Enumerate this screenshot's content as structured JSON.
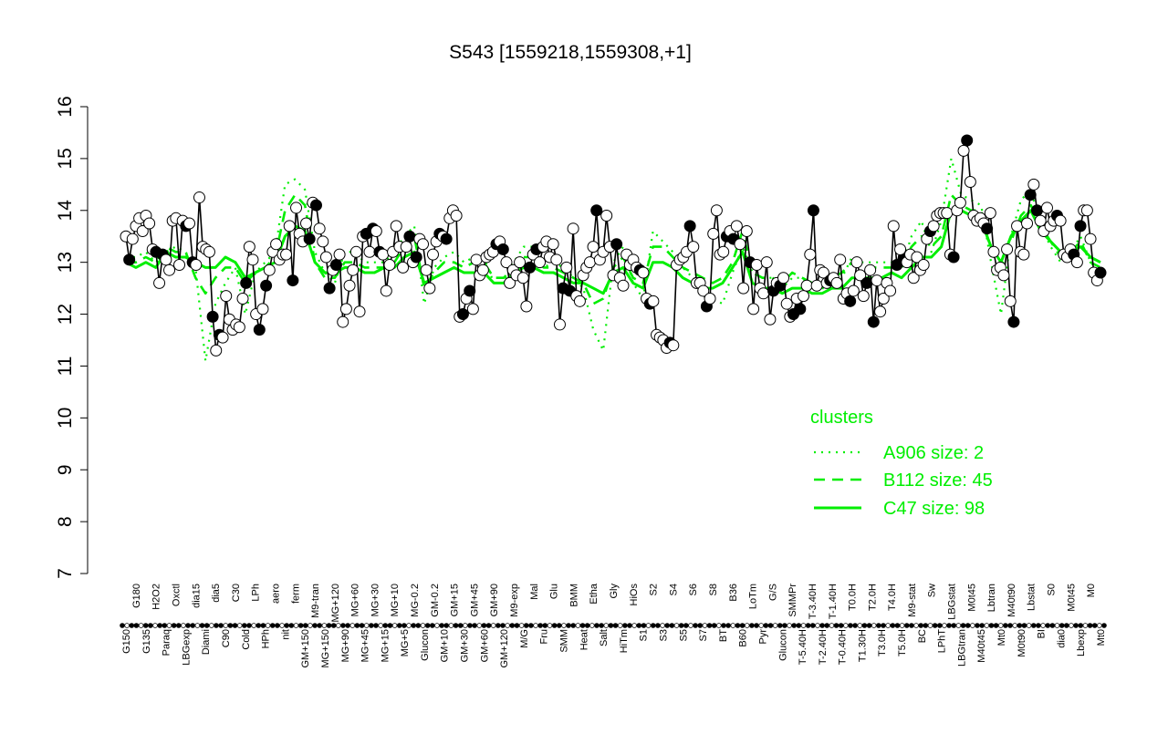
{
  "chart_data": {
    "type": "line",
    "title": "S543 [1559218,1559308,+1]",
    "xlabel": "",
    "ylabel": "",
    "ylim": [
      7,
      16
    ],
    "yticks": [
      7,
      8,
      9,
      10,
      11,
      12,
      13,
      14,
      15,
      16
    ],
    "grid": false,
    "legend_position": "right",
    "colors": {
      "cluster_line": "#00ee00",
      "legend_text": "#00ee00",
      "axis": "#000000",
      "point_fill": "#ffffff",
      "point_stroke": "#000000",
      "group_marker": "#000000"
    },
    "x_tick_labels": [
      "G150",
      "G180",
      "G135",
      "H2O2",
      "Paraq",
      "Oxctl",
      "LBGexp",
      "dia15",
      "Diami",
      "dia5",
      "C90",
      "C30",
      "Cold",
      "LPh",
      "HPh",
      "aero",
      "nit",
      "ferm",
      "GM+150",
      "M9-tran",
      "MG+150",
      "MG+120",
      "MG+90",
      "MG+60",
      "MG+45",
      "MG+30",
      "MG+15",
      "MG+10",
      "MG+5",
      "MG-0.2",
      "Glucon",
      "GM-0.2",
      "GM+10",
      "GM+15",
      "GM+30",
      "GM+45",
      "GM+60",
      "GM+90",
      "GM+120",
      "M9-exp",
      "M/G",
      "Mal",
      "Fru",
      "Glu",
      "SMM",
      "BMM",
      "Heat",
      "Etha",
      "Salt",
      "Gly",
      "HiTm",
      "HiOs",
      "S1",
      "S2",
      "S3",
      "S4",
      "S5",
      "S6",
      "S7",
      "S8",
      "BT",
      "B36",
      "B60",
      "LoTm",
      "Pyr",
      "G/S",
      "Glucon",
      "SMMPr",
      "T-5.40H",
      "T-3.40H",
      "T-2.40H",
      "T-1.40H",
      "T-0.40H",
      "T0.0H",
      "T1.30H",
      "T2.0H",
      "T3.0H",
      "T4.0H",
      "T5.0H",
      "M9-stat",
      "BC",
      "Sw",
      "LPhT",
      "LBGstat",
      "LBGtran",
      "M0t45",
      "M40t45",
      "Lbtran",
      "Mt0",
      "M40t90",
      "M0t90",
      "Lbstat",
      "BI",
      "S0",
      "dia0",
      "M0t45",
      "Lbexp",
      "M0",
      "Mt0"
    ],
    "legend": {
      "title": "clusters",
      "entries": [
        {
          "label": "A906 size: 2",
          "style": "dotted"
        },
        {
          "label": "B112 size: 45",
          "style": "dashed"
        },
        {
          "label": "C47 size: 98",
          "style": "solid"
        }
      ]
    },
    "groups": [
      {
        "label": "G150",
        "values": [
          13.5,
          13.05,
          13.45
        ]
      },
      {
        "label": "G135",
        "values": [
          13.7,
          13.85,
          13.6,
          13.9,
          13.75
        ]
      },
      {
        "label": "H2O2",
        "values": [
          13.25,
          13.2,
          12.6,
          13.15
        ]
      },
      {
        "label": "Paraq",
        "values": [
          13.05,
          12.85,
          13.8,
          13.85,
          12.95
        ]
      },
      {
        "label": "Oxctl",
        "values": [
          13.8,
          13.7,
          13.75,
          13.0
        ]
      },
      {
        "label": "LBGexp",
        "values": [
          12.95,
          14.25,
          13.3,
          13.25
        ]
      },
      {
        "label": "dia15",
        "values": [
          13.2,
          11.95,
          11.3,
          11.6
        ]
      },
      {
        "label": "Diami",
        "values": [
          11.55,
          12.35,
          11.9,
          11.7,
          11.8,
          11.75
        ]
      },
      {
        "label": "C90",
        "values": [
          12.3,
          12.6
        ]
      },
      {
        "label": "C30",
        "values": [
          13.3,
          13.05
        ]
      },
      {
        "label": "Cold",
        "values": [
          12.0,
          11.7,
          12.1,
          12.55
        ]
      },
      {
        "label": "HPh",
        "values": [
          12.85,
          13.2,
          13.35,
          13.05,
          13.15,
          13.15
        ]
      },
      {
        "label": "aero",
        "values": [
          13.7,
          12.65
        ]
      },
      {
        "label": "nit",
        "values": [
          14.05,
          13.55,
          13.4
        ]
      },
      {
        "label": "ferm",
        "values": [
          13.75,
          13.45,
          14.15,
          14.1
        ]
      },
      {
        "label": "GM+150",
        "values": [
          13.65,
          13.4
        ]
      },
      {
        "label": "MG+150",
        "values": [
          13.1,
          12.5,
          12.85,
          12.95,
          13.15
        ]
      },
      {
        "label": "MG+120",
        "values": [
          11.85,
          12.1,
          12.55,
          12.85,
          13.2,
          12.05
        ]
      },
      {
        "label": "MG+90",
        "values": [
          13.5,
          13.55,
          13.2,
          13.65,
          13.6,
          13.2,
          13.15
        ]
      },
      {
        "label": "MG+60",
        "values": [
          12.45,
          12.95,
          13.2,
          13.7,
          13.3,
          12.9
        ]
      },
      {
        "label": "MG+45",
        "values": [
          13.3,
          13.5,
          13.0,
          13.1,
          13.45
        ]
      },
      {
        "label": "MG+30",
        "values": [
          13.35,
          12.85,
          12.5,
          13.15
        ]
      },
      {
        "label": "MG+15",
        "values": [
          13.4,
          13.55,
          13.5,
          13.45
        ]
      },
      {
        "label": "MG-0.2",
        "values": [
          13.85,
          14.0,
          13.9
        ]
      },
      {
        "label": "Glucon",
        "values": [
          11.95,
          12.0,
          12.3,
          12.45,
          12.1
        ]
      },
      {
        "label": "GM-0.2",
        "values": [
          13.05,
          12.75,
          12.85,
          13.1,
          13.15
        ]
      },
      {
        "label": "GM+10",
        "values": [
          13.2,
          13.35,
          13.4,
          13.25,
          13.0
        ]
      },
      {
        "label": "GM+30",
        "values": [
          12.6,
          12.85,
          12.75,
          13.0,
          12.7
        ]
      },
      {
        "label": "GM+45",
        "values": [
          12.15,
          12.9,
          13.15,
          13.25,
          13.0
        ]
      },
      {
        "label": "GM+60",
        "values": [
          13.3,
          13.4,
          13.1,
          13.35,
          13.05
        ]
      },
      {
        "label": "GM+120",
        "values": [
          11.8,
          12.5,
          12.9,
          12.45,
          13.65
        ]
      },
      {
        "label": "M9-exp",
        "values": [
          12.35,
          12.25,
          12.75,
          12.9,
          13.0
        ]
      },
      {
        "label": "M/G",
        "values": [
          13.3,
          14.0,
          13.05
        ]
      },
      {
        "label": "Mal",
        "values": [
          13.2,
          13.9,
          13.3
        ]
      },
      {
        "label": "Fru",
        "values": [
          12.75,
          13.35,
          12.7
        ]
      },
      {
        "label": "Glu",
        "values": [
          12.55,
          13.15,
          12.95,
          13.05
        ]
      },
      {
        "label": "SMM",
        "values": [
          12.9,
          12.85
        ]
      },
      {
        "label": "BMM",
        "values": [
          12.8
        ]
      },
      {
        "label": "Heat",
        "values": [
          12.3,
          12.2,
          12.25
        ]
      },
      {
        "label": "Etha",
        "values": [
          11.6,
          11.55,
          11.5
        ]
      },
      {
        "label": "Salt",
        "values": [
          11.35,
          11.45,
          11.4
        ]
      },
      {
        "label": "Gly",
        "values": [
          12.95,
          13.05,
          13.1
        ]
      },
      {
        "label": "HiTm",
        "values": [
          13.2,
          13.7,
          13.3
        ]
      },
      {
        "label": "HiOs",
        "values": [
          12.6,
          12.6
        ]
      },
      {
        "label": "S1",
        "values": [
          12.45,
          12.15,
          12.3
        ]
      },
      {
        "label": "S2",
        "values": [
          13.55,
          14.0,
          13.15
        ]
      },
      {
        "label": "S3",
        "values": [
          13.2,
          13.5,
          13.6,
          13.45
        ]
      },
      {
        "label": "S4",
        "values": [
          13.7,
          13.35,
          12.5
        ]
      },
      {
        "label": "S5",
        "values": [
          13.6,
          13.0,
          12.1
        ]
      },
      {
        "label": "S6",
        "values": [
          12.95,
          12.5,
          12.4,
          13.0
        ]
      },
      {
        "label": "S7",
        "values": [
          11.9,
          12.45,
          12.6,
          12.55
        ]
      },
      {
        "label": "S8",
        "values": [
          12.7,
          12.2
        ]
      },
      {
        "label": "BT",
        "values": [
          11.95,
          12.0,
          12.3,
          12.1
        ]
      },
      {
        "label": "B36",
        "values": [
          12.35,
          12.55
        ]
      },
      {
        "label": "B60",
        "values": [
          13.15,
          14.0
        ]
      },
      {
        "label": "LoTm",
        "values": [
          12.55,
          12.85,
          12.8
        ]
      },
      {
        "label": "Pyr",
        "values": [
          12.6,
          12.65,
          12.7
        ]
      },
      {
        "label": "G/S",
        "values": [
          12.6,
          13.05,
          12.3
        ]
      },
      {
        "label": "Glucon",
        "values": [
          12.4,
          12.25,
          12.45
        ]
      },
      {
        "label": "SMMPr",
        "values": [
          13.0,
          12.75
        ]
      },
      {
        "label": "T-5.40H",
        "values": [
          12.35,
          12.6,
          12.85,
          11.85,
          12.65
        ]
      },
      {
        "label": "T-1.40H",
        "values": [
          12.05,
          12.3,
          12.6,
          12.45
        ]
      },
      {
        "label": "T1.30H",
        "values": [
          13.7,
          12.95,
          13.25,
          13.05,
          13.0
        ]
      },
      {
        "label": "T3.0H",
        "values": [
          13.15,
          12.7,
          13.1,
          12.85,
          12.95
        ]
      },
      {
        "label": "M9-stat",
        "values": [
          13.45,
          13.6,
          13.7
        ]
      },
      {
        "label": "BC",
        "values": [
          13.9,
          13.95,
          13.95,
          13.95
        ]
      },
      {
        "label": "Sw",
        "values": [
          13.15,
          13.1
        ]
      },
      {
        "label": "LPhT",
        "values": [
          14.0,
          14.15
        ]
      },
      {
        "label": "LBGstat",
        "values": [
          15.15,
          15.35,
          14.55
        ]
      },
      {
        "label": "LBGtran",
        "values": [
          13.9,
          13.8,
          13.85
        ]
      },
      {
        "label": "M0t45",
        "values": [
          13.75,
          13.65,
          13.95
        ]
      },
      {
        "label": "Lbtran",
        "values": [
          13.2,
          12.85,
          12.9,
          12.75,
          13.25
        ]
      },
      {
        "label": "Mt0",
        "values": [
          12.25,
          11.85
        ]
      },
      {
        "label": "M40t90",
        "values": [
          13.7,
          13.2,
          13.15
        ]
      },
      {
        "label": "M0t90",
        "values": [
          13.75,
          14.3,
          14.5,
          14.0
        ]
      },
      {
        "label": "Lbstat",
        "values": [
          13.8,
          13.6,
          14.05,
          13.7
        ]
      },
      {
        "label": "BI",
        "values": [
          13.8,
          13.9
        ]
      },
      {
        "label": "S0",
        "values": [
          13.8,
          13.15,
          13.1
        ]
      },
      {
        "label": "dia0",
        "values": [
          13.25,
          13.15,
          13.0,
          13.7
        ]
      },
      {
        "label": "Lbexp",
        "values": [
          14.0,
          14.0,
          13.45,
          12.8
        ]
      },
      {
        "label": "M0",
        "values": [
          12.65,
          12.8
        ]
      }
    ],
    "series": [
      {
        "name": "A906 size: 2",
        "style": "dotted",
        "values": [
          13.1,
          13.1,
          13.2,
          13.0,
          13.2,
          13.3,
          13.2,
          12.9,
          11.1,
          12.2,
          12.6,
          12.9,
          12.0,
          12.8,
          13.0,
          13.2,
          14.5,
          14.6,
          14.4,
          13.2,
          12.8,
          12.6,
          13.2,
          13.2,
          13.0,
          13.0,
          13.0,
          13.2,
          13.5,
          13.7,
          12.2,
          12.9,
          13.1,
          13.2,
          13.0,
          13.1,
          13.1,
          12.6,
          12.6,
          13.0,
          13.3,
          13.3,
          12.9,
          13.0,
          12.9,
          12.7,
          12.5,
          11.7,
          11.3,
          13.0,
          13.3,
          12.6,
          12.3,
          13.6,
          13.4,
          13.2,
          12.9,
          12.7,
          12.6,
          12.3,
          12.2,
          12.8,
          13.3,
          12.8,
          12.7,
          12.7,
          12.5,
          12.7,
          12.7,
          12.5,
          12.5,
          12.5,
          12.7,
          13.1,
          13.0,
          13.0,
          13.0,
          13.0,
          12.9,
          13.5,
          13.8,
          13.2,
          13.8,
          15.0,
          14.3,
          14.2,
          14.1,
          13.0,
          12.0,
          13.5,
          14.2,
          14.4,
          13.7,
          13.3,
          13.0,
          13.2,
          13.5,
          13.0,
          12.8
        ]
      },
      {
        "name": "B112 size: 45",
        "style": "dashed",
        "values": [
          13.0,
          13.0,
          13.1,
          13.0,
          13.3,
          13.2,
          13.2,
          12.7,
          12.4,
          12.7,
          12.9,
          12.9,
          12.6,
          12.8,
          12.9,
          13.1,
          14.0,
          14.3,
          14.1,
          13.0,
          12.7,
          12.7,
          13.0,
          13.0,
          12.9,
          12.9,
          12.9,
          13.0,
          13.3,
          13.5,
          12.5,
          12.8,
          13.0,
          13.0,
          12.9,
          13.0,
          13.0,
          12.7,
          12.7,
          12.9,
          13.1,
          13.1,
          12.9,
          12.9,
          12.8,
          12.7,
          12.6,
          12.2,
          12.3,
          12.9,
          13.1,
          12.7,
          12.6,
          13.3,
          13.3,
          13.1,
          12.9,
          12.8,
          12.7,
          12.6,
          12.7,
          13.0,
          13.6,
          12.8,
          12.7,
          12.7,
          12.6,
          12.8,
          12.7,
          12.6,
          12.6,
          12.7,
          12.8,
          13.0,
          12.9,
          12.9,
          12.9,
          12.9,
          12.9,
          13.3,
          13.5,
          13.3,
          13.5,
          14.3,
          14.1,
          14.0,
          14.0,
          13.2,
          12.9,
          13.4,
          13.9,
          14.1,
          13.7,
          13.4,
          13.1,
          13.2,
          13.4,
          13.0,
          12.9
        ]
      },
      {
        "name": "C47 size: 98",
        "style": "solid",
        "values": [
          13.0,
          12.9,
          13.0,
          12.9,
          13.2,
          13.1,
          13.1,
          13.0,
          12.9,
          12.9,
          13.1,
          13.0,
          12.7,
          12.8,
          12.9,
          13.0,
          13.5,
          13.7,
          13.6,
          13.0,
          12.8,
          12.8,
          12.9,
          12.9,
          12.8,
          12.8,
          12.9,
          12.9,
          13.1,
          13.2,
          12.6,
          12.7,
          12.8,
          12.9,
          12.8,
          12.8,
          12.8,
          12.6,
          12.6,
          12.8,
          12.9,
          12.9,
          12.8,
          12.8,
          12.7,
          12.6,
          12.6,
          12.5,
          12.4,
          12.8,
          12.9,
          12.6,
          12.5,
          13.0,
          13.0,
          12.9,
          12.7,
          12.6,
          12.5,
          12.5,
          12.6,
          12.9,
          13.2,
          12.6,
          12.5,
          12.5,
          12.4,
          12.5,
          12.5,
          12.4,
          12.4,
          12.5,
          12.5,
          12.7,
          12.7,
          12.7,
          12.7,
          12.8,
          12.7,
          12.9,
          13.1,
          13.1,
          13.3,
          14.0,
          14.0,
          13.9,
          13.8,
          13.3,
          13.0,
          13.5,
          13.8,
          14.0,
          13.6,
          13.4,
          13.2,
          13.2,
          13.3,
          13.1,
          13.0
        ]
      }
    ]
  }
}
